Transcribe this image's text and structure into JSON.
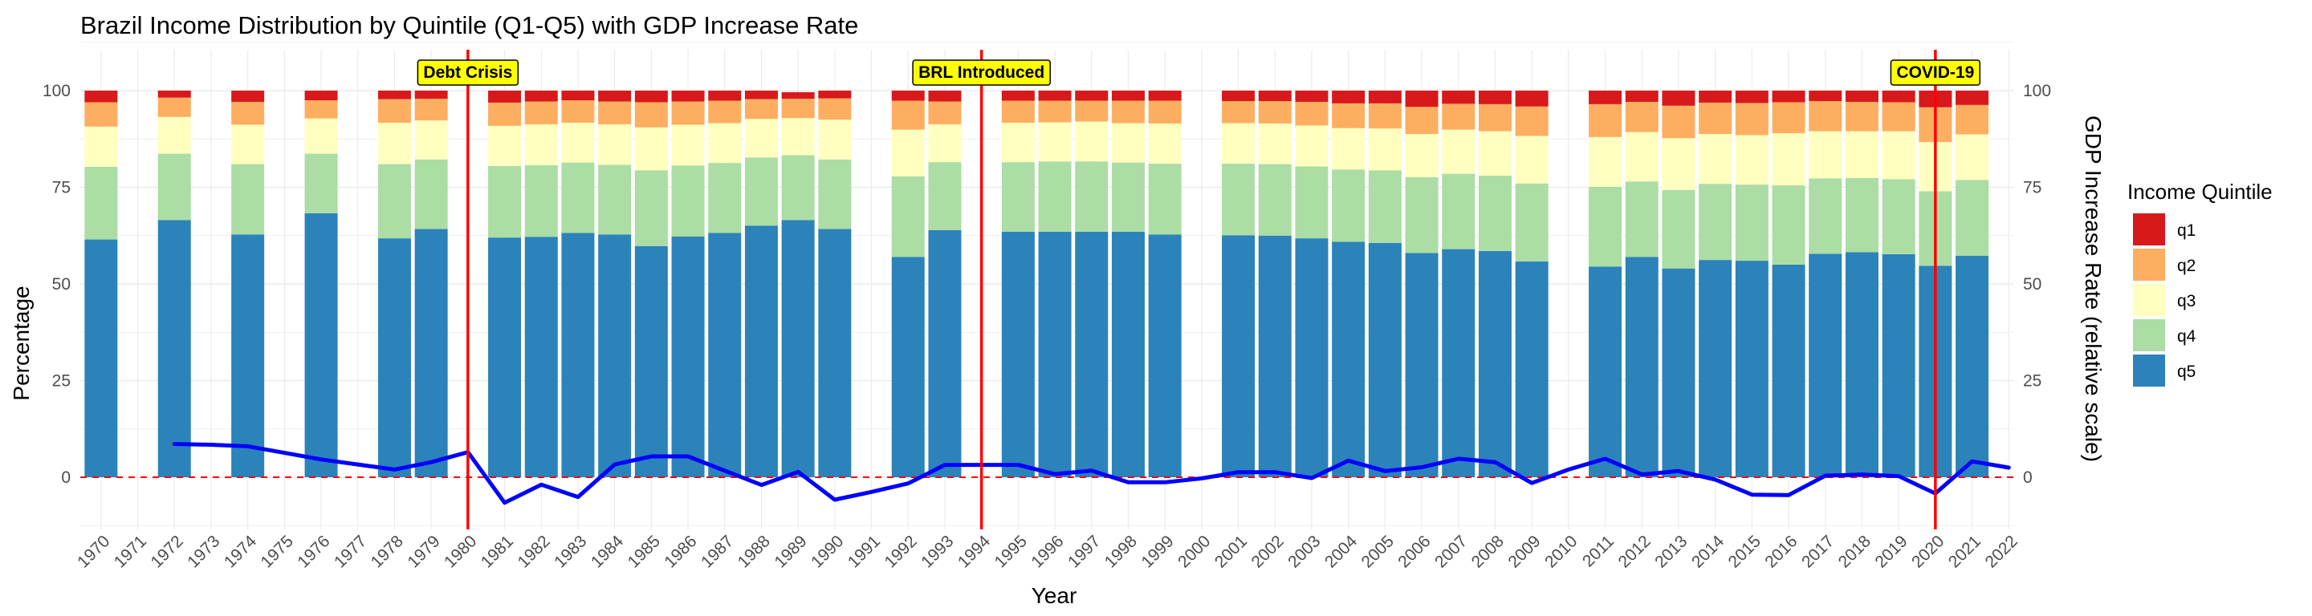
{
  "chart_data": {
    "type": "bar",
    "title": "Brazil Income Distribution by Quintile (Q1-Q5) with GDP Increase Rate",
    "xlabel": "Year",
    "ylabel": "Percentage",
    "y2label": "GDP Increase Rate (relative scale)",
    "ylim": [
      -12,
      110
    ],
    "yticks": [
      0,
      25,
      50,
      75,
      100
    ],
    "grid": true,
    "legend": {
      "title": "Income Quintile",
      "placement": "right",
      "items": [
        {
          "key": "q1",
          "label": "q1",
          "color": "#d7191c"
        },
        {
          "key": "q2",
          "label": "q2",
          "color": "#fdae61"
        },
        {
          "key": "q3",
          "label": "q3",
          "color": "#ffffbf"
        },
        {
          "key": "q4",
          "label": "q4",
          "color": "#abdda4"
        },
        {
          "key": "q5",
          "label": "q5",
          "color": "#2b83ba"
        }
      ]
    },
    "categories": [
      "1970",
      "1971",
      "1972",
      "1973",
      "1974",
      "1975",
      "1976",
      "1977",
      "1978",
      "1979",
      "1980",
      "1981",
      "1982",
      "1983",
      "1984",
      "1985",
      "1986",
      "1987",
      "1988",
      "1989",
      "1990",
      "1991",
      "1992",
      "1993",
      "1994",
      "1995",
      "1996",
      "1997",
      "1998",
      "1999",
      "2000",
      "2001",
      "2002",
      "2003",
      "2004",
      "2005",
      "2006",
      "2007",
      "2008",
      "2009",
      "2010",
      "2011",
      "2012",
      "2013",
      "2014",
      "2015",
      "2016",
      "2017",
      "2018",
      "2019",
      "2020",
      "2021",
      "2022"
    ],
    "series": [
      {
        "name": "q5",
        "values": [
          61.5,
          null,
          66.5,
          null,
          62.8,
          null,
          68.3,
          null,
          61.8,
          64.2,
          null,
          62.0,
          62.2,
          63.2,
          62.8,
          59.8,
          62.3,
          63.2,
          65.1,
          66.5,
          64.2,
          null,
          57.0,
          63.9,
          null,
          63.5,
          63.5,
          63.5,
          63.5,
          62.8,
          null,
          62.6,
          62.5,
          61.8,
          60.9,
          60.6,
          58.0,
          59.0,
          58.5,
          55.8,
          null,
          54.5,
          57.0,
          54.0,
          56.2,
          56.0,
          55.0,
          57.8,
          58.2,
          57.7,
          54.7,
          57.3,
          null
        ]
      },
      {
        "name": "q4",
        "values": [
          18.8,
          null,
          17.2,
          null,
          18.2,
          null,
          15.4,
          null,
          19.2,
          18.0,
          null,
          18.5,
          18.5,
          18.2,
          18.0,
          19.6,
          18.3,
          18.1,
          17.6,
          16.8,
          18.0,
          null,
          20.8,
          17.6,
          null,
          18.0,
          18.2,
          18.2,
          17.9,
          18.3,
          null,
          18.5,
          18.5,
          18.6,
          18.7,
          18.8,
          19.6,
          19.5,
          19.5,
          20.2,
          null,
          20.6,
          19.5,
          20.3,
          19.7,
          19.7,
          20.5,
          19.5,
          19.2,
          19.4,
          19.3,
          19.6,
          null
        ]
      },
      {
        "name": "q3",
        "values": [
          10.4,
          null,
          9.5,
          null,
          10.2,
          null,
          9.1,
          null,
          10.7,
          10.1,
          null,
          10.4,
          10.6,
          10.3,
          10.5,
          11.1,
          10.6,
          10.3,
          10.0,
          9.6,
          10.3,
          null,
          12.1,
          9.8,
          null,
          10.2,
          10.1,
          10.3,
          10.2,
          10.4,
          null,
          10.5,
          10.5,
          10.6,
          10.7,
          10.8,
          11.2,
          11.4,
          11.5,
          12.3,
          null,
          12.9,
          12.8,
          13.4,
          12.9,
          12.8,
          13.5,
          12.2,
          12.1,
          12.4,
          12.7,
          11.8,
          null
        ]
      },
      {
        "name": "q2",
        "values": [
          6.3,
          null,
          5.0,
          null,
          5.9,
          null,
          4.7,
          null,
          6.1,
          5.6,
          null,
          6.0,
          5.9,
          5.8,
          5.9,
          6.5,
          6.0,
          5.8,
          5.1,
          5.0,
          5.5,
          null,
          7.5,
          5.9,
          null,
          5.7,
          5.6,
          5.4,
          5.8,
          5.9,
          null,
          5.7,
          5.8,
          6.1,
          6.4,
          6.5,
          7.0,
          6.7,
          7.0,
          7.6,
          null,
          8.5,
          7.8,
          8.4,
          8.1,
          8.3,
          8.0,
          7.8,
          7.6,
          7.5,
          9.0,
          7.6,
          null
        ]
      },
      {
        "name": "q1",
        "values": [
          3.0,
          null,
          1.8,
          null,
          2.9,
          null,
          2.5,
          null,
          2.2,
          2.1,
          null,
          3.1,
          2.8,
          2.5,
          2.8,
          3.0,
          2.8,
          2.6,
          2.2,
          1.7,
          2.0,
          null,
          2.6,
          2.8,
          null,
          2.6,
          2.6,
          2.6,
          2.6,
          2.6,
          null,
          2.7,
          2.7,
          2.9,
          3.3,
          3.3,
          4.2,
          3.4,
          3.5,
          4.1,
          null,
          3.5,
          2.9,
          3.9,
          3.1,
          3.2,
          3.0,
          2.7,
          2.9,
          3.0,
          4.3,
          3.7,
          null
        ]
      }
    ],
    "gdp_line": {
      "color": "#0000ff",
      "values": [
        null,
        null,
        8.6,
        8.4,
        8.0,
        6.3,
        4.6,
        3.3,
        2.0,
        3.9,
        6.5,
        -6.6,
        -1.9,
        -5.1,
        3.3,
        5.4,
        5.4,
        1.7,
        -2.0,
        1.4,
        -5.8,
        -3.8,
        -1.6,
        3.2,
        3.2,
        3.2,
        0.8,
        1.7,
        -1.3,
        -1.3,
        -0.3,
        1.3,
        1.3,
        -0.2,
        4.3,
        1.6,
        2.6,
        4.8,
        3.9,
        -1.5,
        2.0,
        4.8,
        0.7,
        1.6,
        -0.6,
        -4.5,
        -4.6,
        0.4,
        0.7,
        0.3,
        -4.2,
        4.1,
        2.5
      ]
    },
    "zero_line": {
      "value": 0,
      "color": "#ff0000",
      "style": "dashed"
    },
    "annotations": [
      {
        "year": "1980",
        "label": "Debt Crisis"
      },
      {
        "year": "1994",
        "label": "BRL Introduced"
      },
      {
        "year": "2020",
        "label": "COVID-19"
      }
    ],
    "annotation_colors": {
      "line": "#ff0000",
      "box_fill": "#ffff00",
      "box_border": "#000000"
    }
  }
}
